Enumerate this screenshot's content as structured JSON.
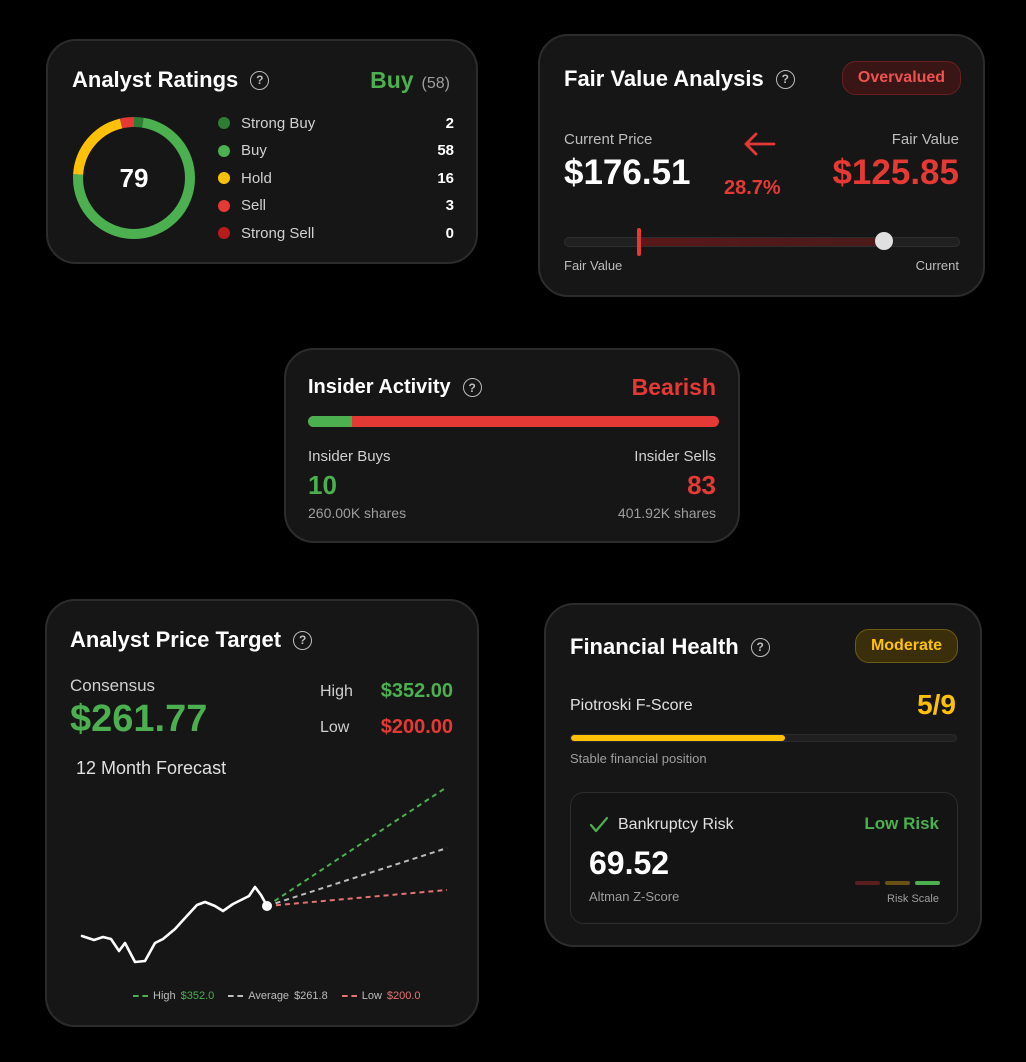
{
  "analyst_ratings": {
    "title": "Analyst Ratings",
    "rating": "Buy",
    "count": "(58)",
    "score": "79",
    "items": [
      {
        "label": "Strong Buy",
        "count": "2",
        "color": "#2e7d32"
      },
      {
        "label": "Buy",
        "count": "58",
        "color": "#4caf50"
      },
      {
        "label": "Hold",
        "count": "16",
        "color": "#ffc107"
      },
      {
        "label": "Sell",
        "count": "3",
        "color": "#e53935"
      },
      {
        "label": "Strong Sell",
        "count": "0",
        "color": "#b71c1c"
      }
    ]
  },
  "fair_value": {
    "title": "Fair Value Analysis",
    "badge": "Overvalued",
    "current_label": "Current Price",
    "current_value": "$176.51",
    "diff": "28.7%",
    "fair_label": "Fair Value",
    "fair_value": "$125.85",
    "scale_left": "Fair Value",
    "scale_right": "Current",
    "arrow_icon": "arrow-left-icon"
  },
  "insider": {
    "title": "Insider Activity",
    "sentiment": "Bearish",
    "buys_label": "Insider Buys",
    "buys_count": "10",
    "buys_shares": "260.00K shares",
    "sells_label": "Insider Sells",
    "sells_count": "83",
    "sells_shares": "401.92K shares",
    "buy_fraction": 0.108
  },
  "price_target": {
    "title": "Analyst Price Target",
    "consensus_label": "Consensus",
    "consensus_value": "$261.77",
    "high_label": "High",
    "high_value": "$352.00",
    "low_label": "Low",
    "low_value": "$200.00",
    "forecast_label": "12 Month Forecast",
    "legend": [
      {
        "label": "High",
        "value": "$352.0",
        "color": "#4caf50"
      },
      {
        "label": "Average",
        "value": "$261.8",
        "color": "#bdbdbd"
      },
      {
        "label": "Low",
        "value": "$200.0",
        "color": "#e57373"
      }
    ]
  },
  "financial_health": {
    "title": "Financial Health",
    "badge": "Moderate",
    "fscore_label": "Piotroski F-Score",
    "fscore_value": "5/9",
    "fscore_fraction": 0.556,
    "fscore_desc": "Stable financial position",
    "bankruptcy_label": "Bankruptcy Risk",
    "risk_level": "Low Risk",
    "zscore_value": "69.52",
    "zscore_label": "Altman Z-Score",
    "risk_scale_label": "Risk Scale",
    "check_icon": "check-icon"
  }
}
